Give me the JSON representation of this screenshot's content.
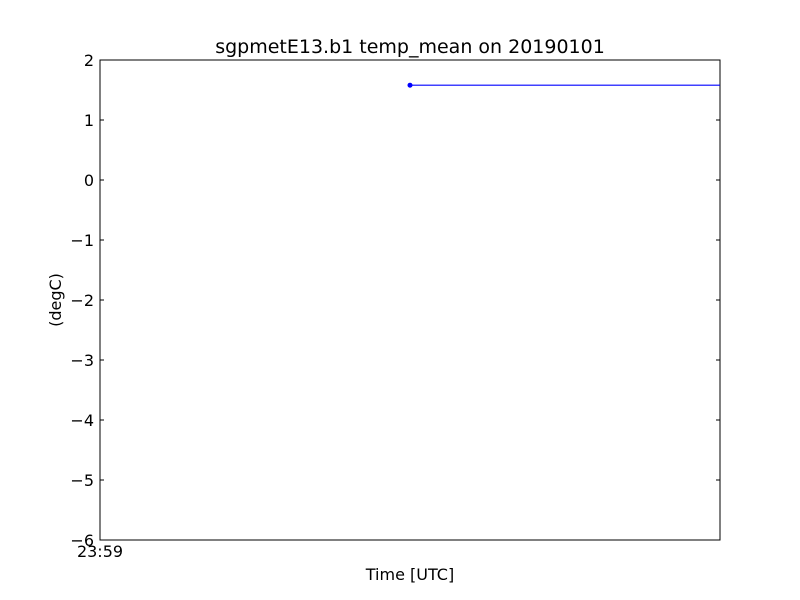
{
  "chart_data": {
    "type": "line",
    "title": "sgpmetE13.b1 temp_mean on 20190101",
    "xlabel": "Time [UTC]",
    "ylabel": "(degC)",
    "ylim": [
      -6,
      2
    ],
    "yticks": [
      2,
      1,
      0,
      -1,
      -2,
      -3,
      -4,
      -5,
      -6
    ],
    "ytick_labels": [
      "2",
      "1",
      "0",
      "−1",
      "−2",
      "−3",
      "−4",
      "−5",
      "−6"
    ],
    "xlim": [
      0,
      1
    ],
    "xtick_labels": [
      {
        "x": 0,
        "label": "23:59"
      }
    ],
    "grid": false,
    "color": "#0000ff",
    "series": [
      {
        "points": [
          {
            "x": 0.5,
            "y": 1.58
          },
          {
            "x": 1.0,
            "y": 1.58
          }
        ]
      }
    ]
  }
}
